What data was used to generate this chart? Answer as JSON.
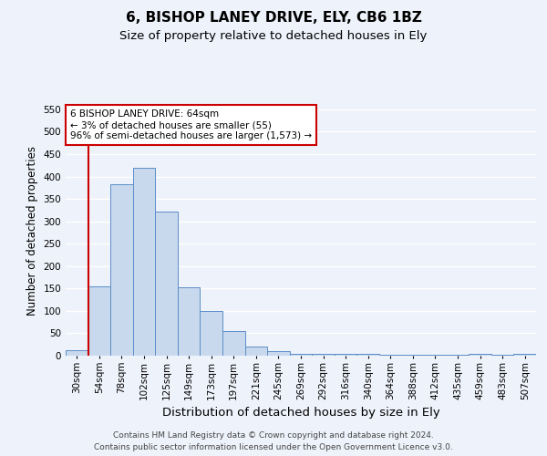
{
  "title": "6, BISHOP LANEY DRIVE, ELY, CB6 1BZ",
  "subtitle": "Size of property relative to detached houses in Ely",
  "xlabel": "Distribution of detached houses by size in Ely",
  "ylabel": "Number of detached properties",
  "bar_values": [
    13,
    155,
    382,
    420,
    322,
    153,
    100,
    55,
    20,
    11,
    5,
    5,
    4,
    4,
    3,
    3,
    3,
    3,
    5,
    3,
    5
  ],
  "bin_labels": [
    "30sqm",
    "54sqm",
    "78sqm",
    "102sqm",
    "125sqm",
    "149sqm",
    "173sqm",
    "197sqm",
    "221sqm",
    "245sqm",
    "269sqm",
    "292sqm",
    "316sqm",
    "340sqm",
    "364sqm",
    "388sqm",
    "412sqm",
    "435sqm",
    "459sqm",
    "483sqm",
    "507sqm"
  ],
  "bar_color": "#c9d9ed",
  "bar_edge_color": "#5b8dc8",
  "vline_color": "#cc0000",
  "vline_x": 1.5,
  "annotation_text": "6 BISHOP LANEY DRIVE: 64sqm\n← 3% of detached houses are smaller (55)\n96% of semi-detached houses are larger (1,573) →",
  "annotation_box_color": "#ffffff",
  "annotation_box_edge_color": "#cc0000",
  "ylim": [
    0,
    560
  ],
  "yticks": [
    0,
    50,
    100,
    150,
    200,
    250,
    300,
    350,
    400,
    450,
    500,
    550
  ],
  "footer_text": "Contains HM Land Registry data © Crown copyright and database right 2024.\nContains public sector information licensed under the Open Government Licence v3.0.",
  "background_color": "#eef2fa",
  "grid_color": "#ffffff",
  "title_fontsize": 11,
  "subtitle_fontsize": 9.5,
  "axis_label_fontsize": 8.5,
  "tick_fontsize": 7.5,
  "footer_fontsize": 6.5,
  "annotation_fontsize": 7.5
}
